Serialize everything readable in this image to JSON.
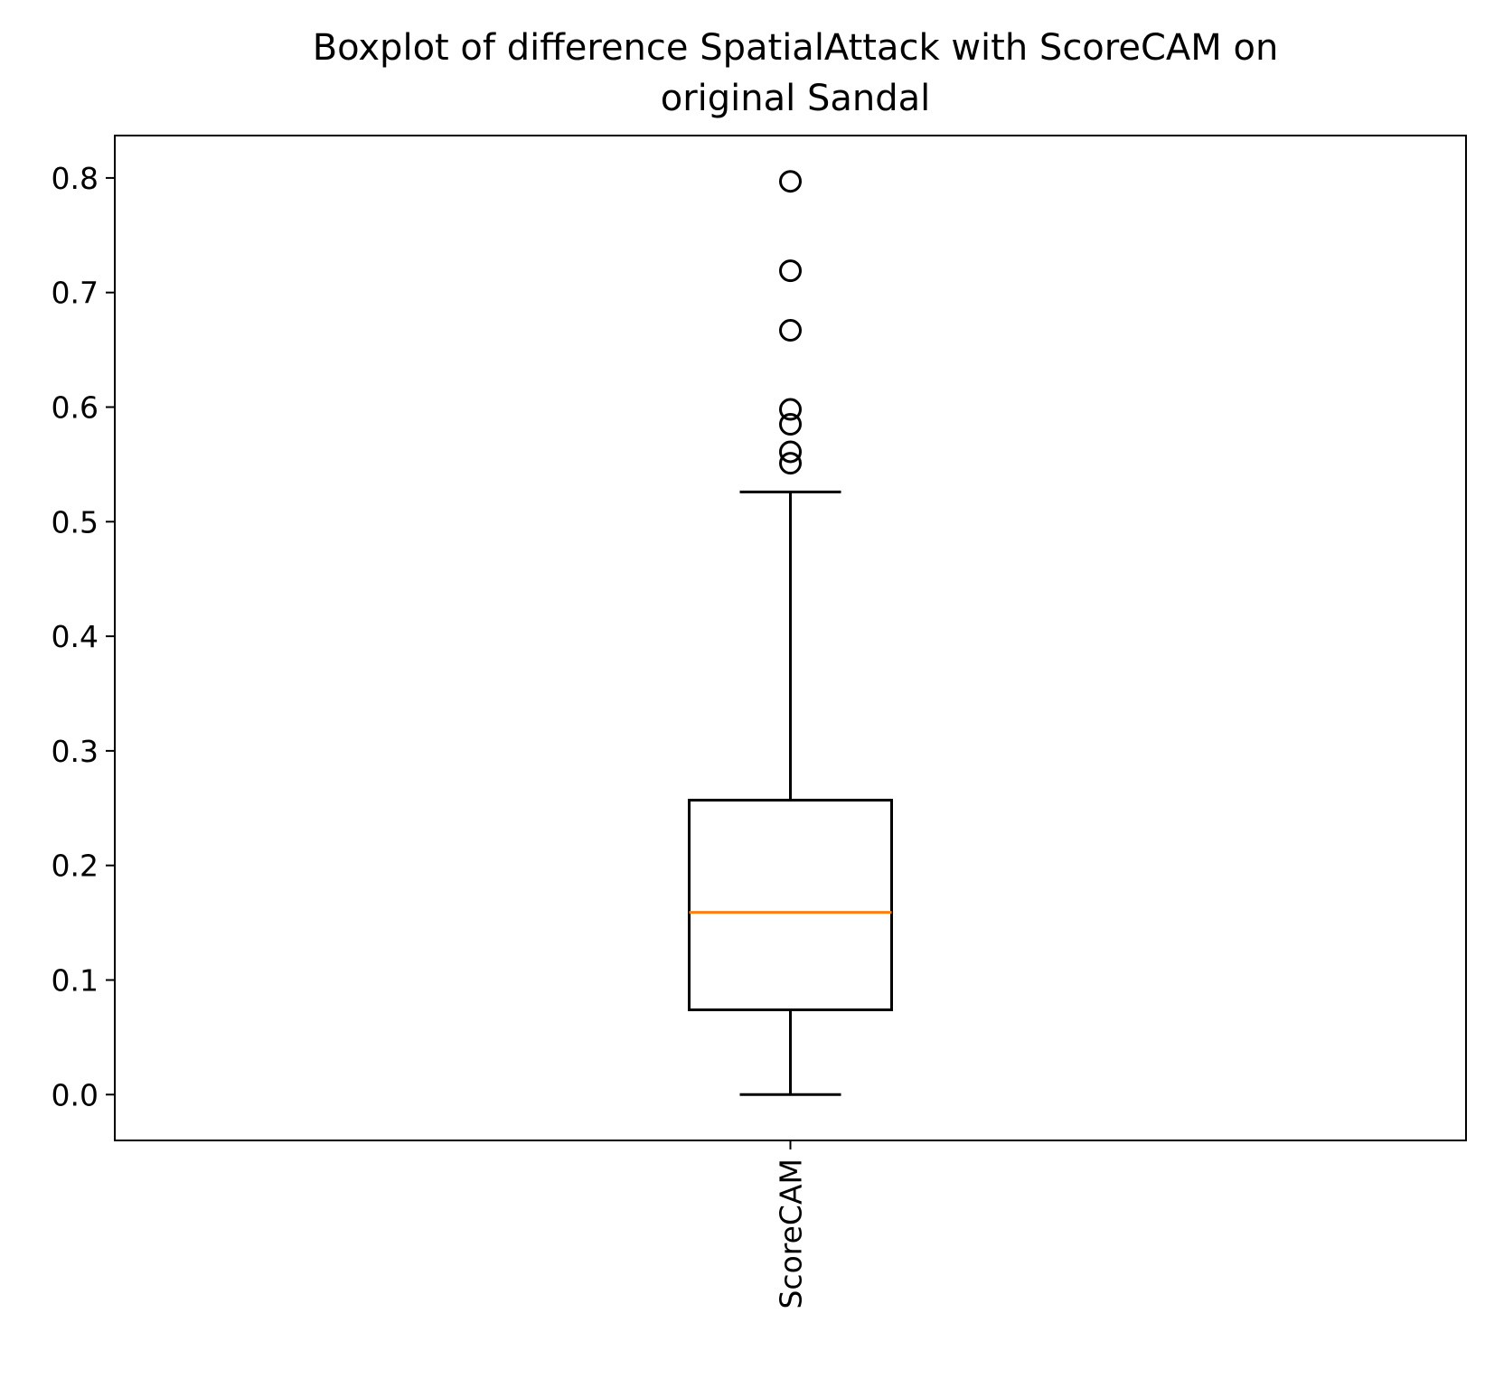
{
  "chart_data": {
    "type": "boxplot",
    "title": "Boxplot of difference SpatialAttack with ScoreCAM on\noriginal Sandal",
    "title_lines": [
      "Boxplot of difference SpatialAttack with ScoreCAM on",
      "original Sandal"
    ],
    "xlabel": "",
    "ylabel": "",
    "categories": [
      "ScoreCAM"
    ],
    "ylim": [
      -0.04,
      0.837
    ],
    "yticks": [
      0.0,
      0.1,
      0.2,
      0.3,
      0.4,
      0.5,
      0.6,
      0.7,
      0.8
    ],
    "ytick_labels": [
      "0.0",
      "0.1",
      "0.2",
      "0.3",
      "0.4",
      "0.5",
      "0.6",
      "0.7",
      "0.8"
    ],
    "grid": false,
    "boxes": [
      {
        "category": "ScoreCAM",
        "whisker_low": 0.0,
        "q1": 0.074,
        "median": 0.159,
        "q3": 0.257,
        "whisker_high": 0.526,
        "outliers": [
          0.551,
          0.561,
          0.585,
          0.598,
          0.667,
          0.719,
          0.797
        ]
      }
    ],
    "colors": {
      "box": "#000000",
      "median": "#ff7f0e",
      "outlier": "#000000"
    }
  }
}
